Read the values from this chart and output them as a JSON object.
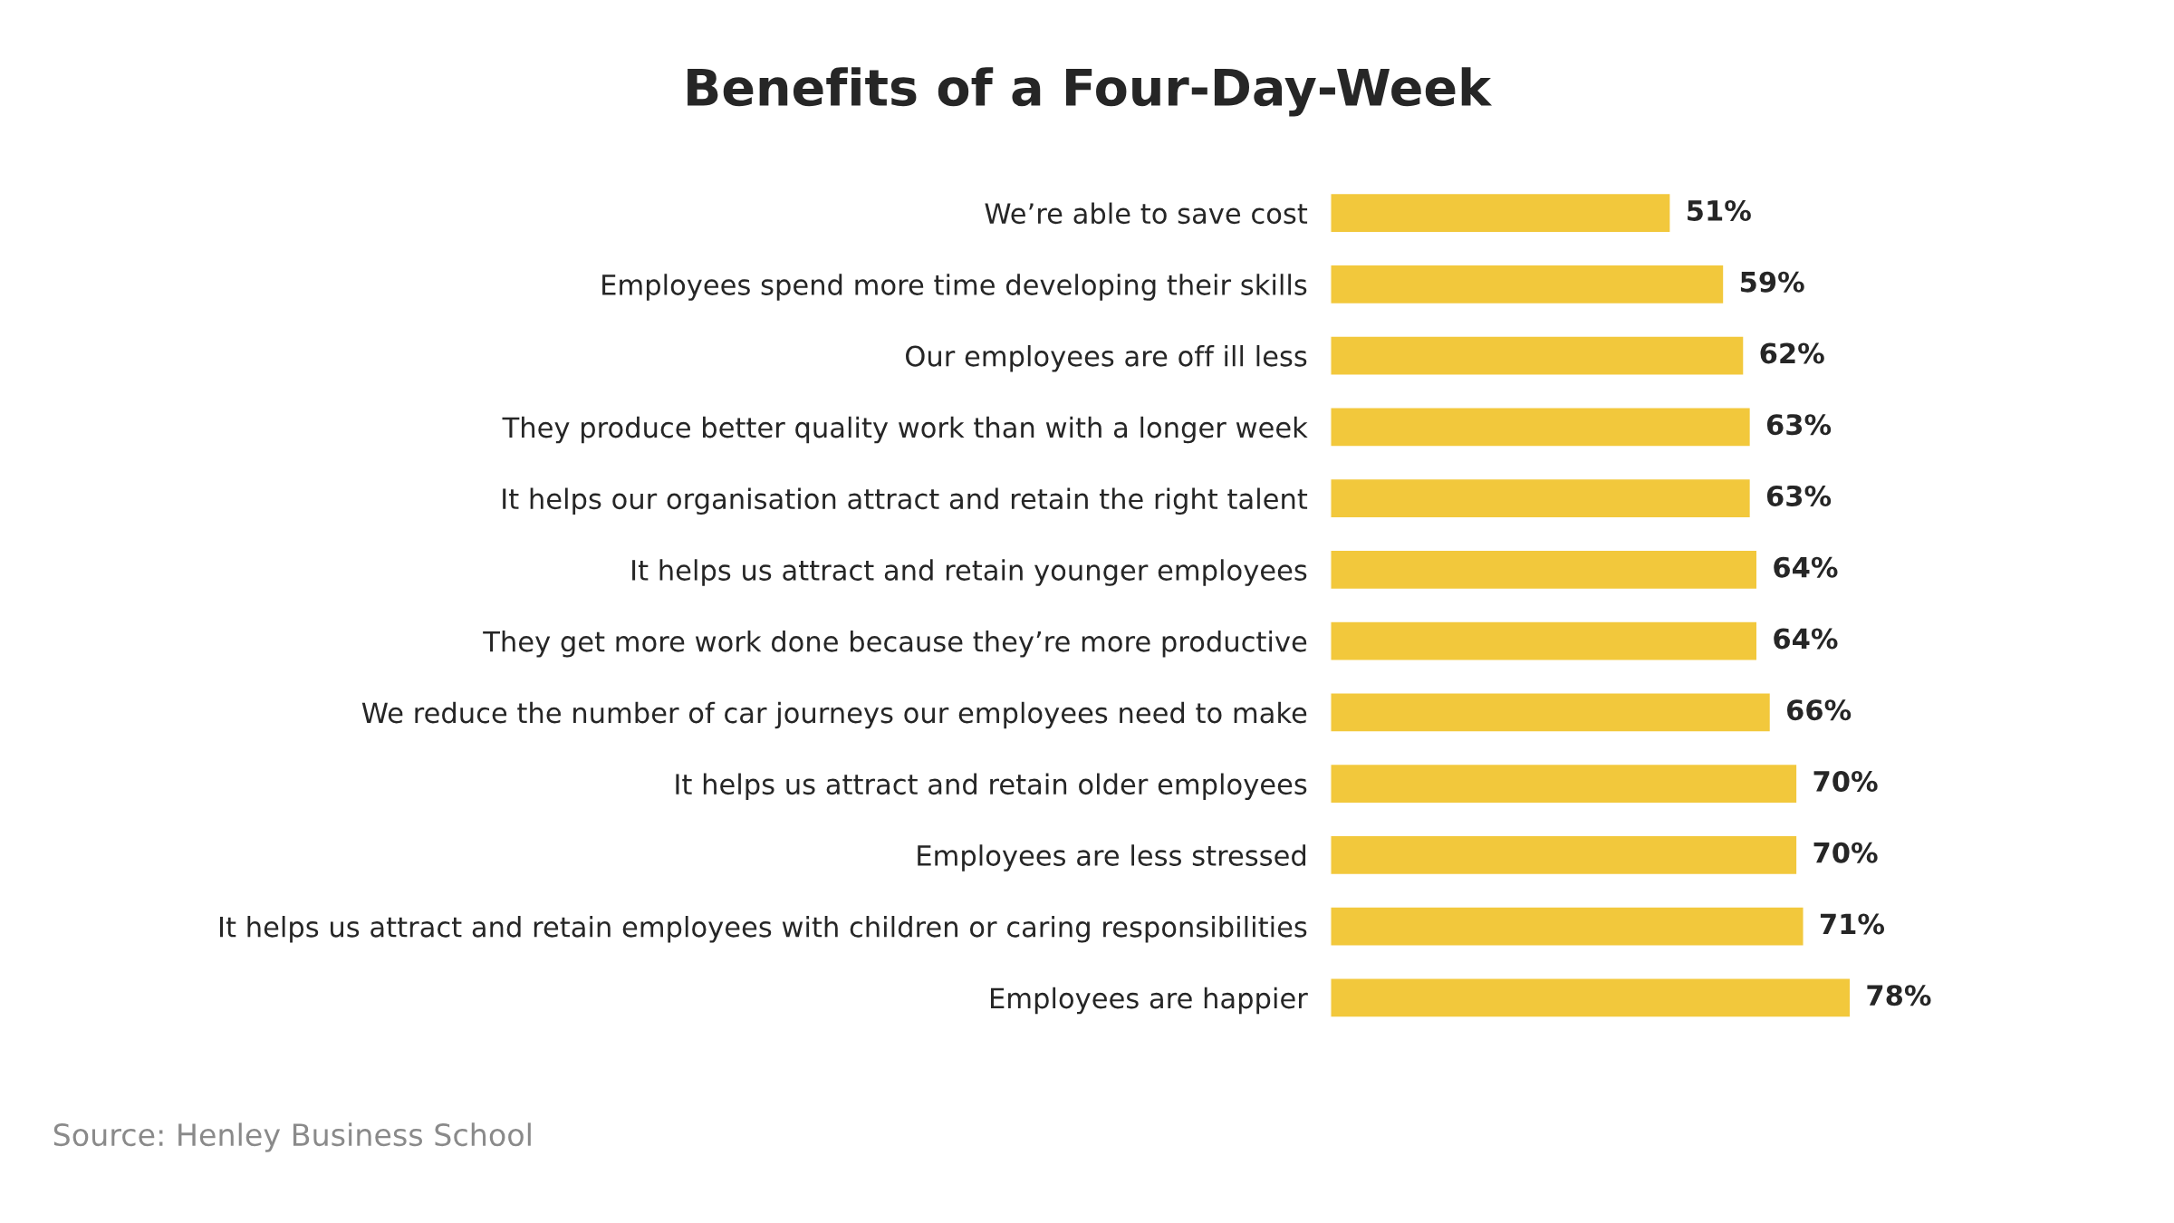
{
  "chart_data": {
    "type": "bar",
    "orientation": "horizontal",
    "title": "Benefits of a Four-Day-Week",
    "categories": [
      "We’re able to save cost",
      "Employees spend more time developing their skills",
      "Our employees are off ill less",
      "They produce better quality work than with a longer week",
      "It helps our organisation attract and retain the right talent",
      "It helps us attract and retain younger employees",
      "They get more work done because they’re more productive",
      "We reduce the number of car journeys our employees need to make",
      "It helps us attract and retain older employees",
      "Employees are less stressed",
      "It helps us attract and retain employees with children or caring responsibilities",
      "Employees are happier"
    ],
    "values": [
      51,
      59,
      62,
      63,
      63,
      64,
      64,
      66,
      70,
      70,
      71,
      78
    ],
    "value_labels": [
      "51%",
      "59%",
      "62%",
      "63%",
      "63%",
      "64%",
      "64%",
      "66%",
      "70%",
      "70%",
      "71%",
      "78%"
    ],
    "color": "#f2c83c",
    "annotations": [
      "Source: Henley Business School"
    ],
    "grid": false
  }
}
